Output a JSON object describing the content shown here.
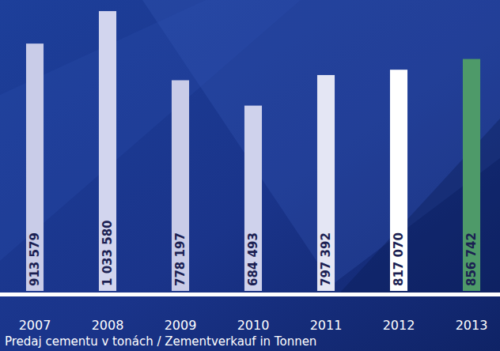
{
  "chart_data": {
    "type": "bar",
    "x_label": "Predaj cementu v tonách / Zementverkauf in Tonnen",
    "categories": [
      "2007",
      "2008",
      "2009",
      "2010",
      "2011",
      "2012",
      "2013"
    ],
    "values": [
      913579,
      1033580,
      778197,
      684493,
      797392,
      817070,
      856742
    ],
    "value_labels": [
      "913 579",
      "1 033 580",
      "778 197",
      "684 493",
      "797 392",
      "817 070",
      "856 742"
    ],
    "colors": [
      "#c9cce8",
      "#d2d5ee",
      "#c9cce8",
      "#cfd2ec",
      "#e4e6f4",
      "#ffffff",
      "#4e9a69"
    ],
    "ylim": [
      0,
      1060000
    ],
    "data_labels": true,
    "tick_labels": "x"
  }
}
